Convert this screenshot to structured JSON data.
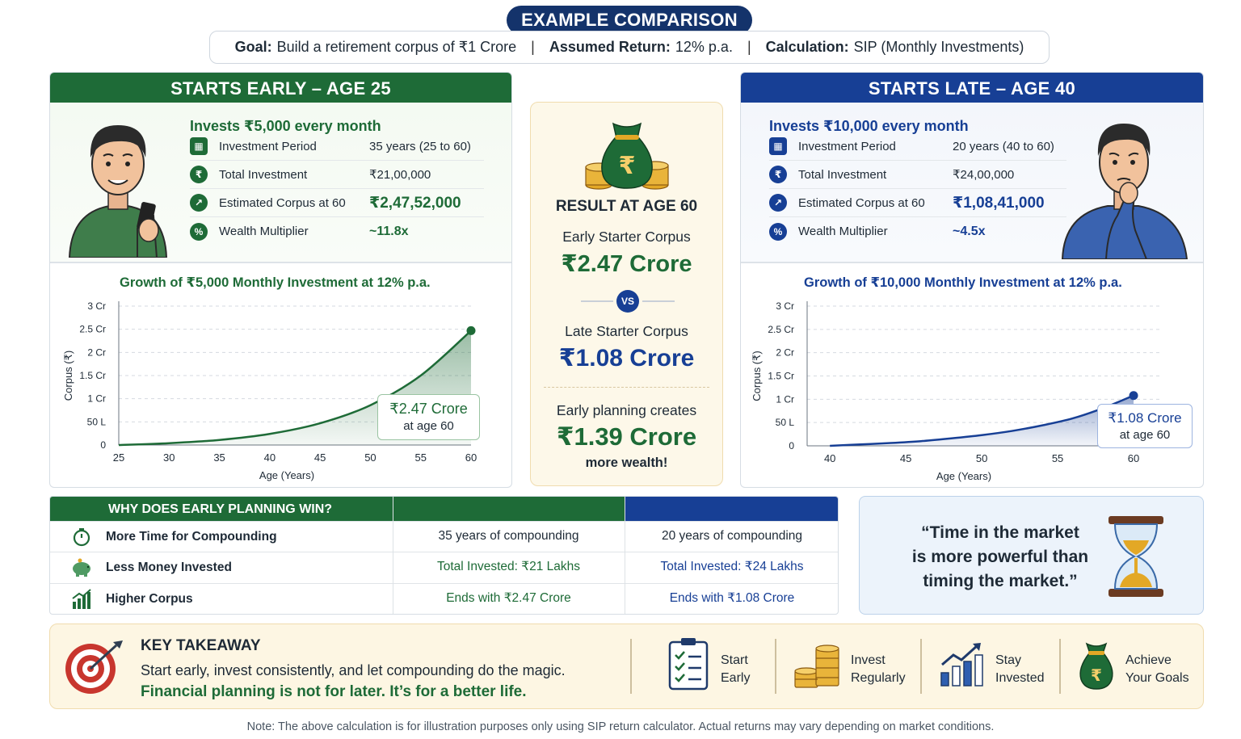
{
  "header": {
    "title": "EXAMPLE COMPARISON",
    "goal_label": "Goal:",
    "goal_value": "Build a retirement corpus of ₹1 Crore",
    "return_label": "Assumed Return:",
    "return_value": "12% p.a.",
    "calc_label": "Calculation:",
    "calc_value": "SIP (Monthly Investments)",
    "separator": "|"
  },
  "early": {
    "heading": "STARTS EARLY – AGE 25",
    "invest_title": "Invests ₹5,000 every month",
    "stats": [
      {
        "label": "Investment Period",
        "value": "35 years (25 to 60)"
      },
      {
        "label": "Total Investment",
        "value": "₹21,00,000"
      },
      {
        "label": "Estimated Corpus at 60",
        "value": "₹2,47,52,000"
      },
      {
        "label": "Wealth Multiplier",
        "value": "~11.8x"
      }
    ],
    "chart_title": "Growth of ₹5,000 Monthly Investment at 12% p.a.",
    "callout_value": "₹2.47 Crore",
    "callout_sub": "at age 60"
  },
  "late": {
    "heading": "STARTS LATE – AGE 40",
    "invest_title": "Invests ₹10,000 every month",
    "stats": [
      {
        "label": "Investment Period",
        "value": "20 years (40 to 60)"
      },
      {
        "label": "Total Investment",
        "value": "₹24,00,000"
      },
      {
        "label": "Estimated Corpus at 60",
        "value": "₹1,08,41,000"
      },
      {
        "label": "Wealth Multiplier",
        "value": "~4.5x"
      }
    ],
    "chart_title": "Growth of ₹10,000 Monthly Investment at 12% p.a.",
    "callout_value": "₹1.08 Crore",
    "callout_sub": "at age 60"
  },
  "result": {
    "title": "RESULT AT AGE 60",
    "early_label": "Early Starter Corpus",
    "early_value": "₹2.47 Crore",
    "vs": "VS",
    "late_label": "Late Starter Corpus",
    "late_value": "₹1.08 Crore",
    "planning_label": "Early planning creates",
    "planning_value": "₹1.39 Crore",
    "planning_sub": "more wealth!"
  },
  "why": {
    "heading": "WHY DOES EARLY PLANNING WIN?",
    "rows": [
      {
        "label": "More Time for Compounding",
        "early": "35 years of compounding",
        "late": "20 years of compounding"
      },
      {
        "label": "Less Money Invested",
        "early": "Total Invested:  ₹21 Lakhs",
        "late": "Total Invested:  ₹24 Lakhs"
      },
      {
        "label": "Higher Corpus",
        "early": "Ends with  ₹2.47 Crore",
        "late": "Ends with  ₹1.08 Crore"
      }
    ]
  },
  "quote": {
    "line1": "“Time in the market",
    "line2": "is more powerful than",
    "line3": "timing the market.”"
  },
  "takeaway": {
    "title": "KEY TAKEAWAY",
    "line1": "Start early, invest consistently, and let compounding do the magic.",
    "line2": "Financial planning is not for later. It’s for a better life.",
    "steps": [
      {
        "l1": "Start",
        "l2": "Early",
        "icon": "checklist-icon"
      },
      {
        "l1": "Invest",
        "l2": "Regularly",
        "icon": "coins-icon"
      },
      {
        "l1": "Stay",
        "l2": "Invested",
        "icon": "growth-chart-icon"
      },
      {
        "l1": "Achieve",
        "l2": "Your Goals",
        "icon": "money-bag-icon"
      }
    ]
  },
  "note": "Note: The above calculation is for illustration purposes only using SIP return calculator. Actual returns may vary depending on market conditions.",
  "colors": {
    "green": "#1e6b37",
    "blue": "#173f95",
    "navy": "#14336b",
    "gold": "#e3a826"
  },
  "chart_data": [
    {
      "type": "area",
      "title": "Growth of ₹5,000 Monthly Investment at 12% p.a.",
      "xlabel": "Age (Years)",
      "ylabel": "Corpus (₹)",
      "x_ticks": [
        25,
        30,
        35,
        40,
        45,
        50,
        55,
        60
      ],
      "y_ticks": [
        0,
        0.5,
        1,
        1.5,
        2,
        2.5,
        3
      ],
      "y_tick_labels": [
        "0",
        "50 L",
        "1 Cr",
        "1.5 Cr",
        "2 Cr",
        "2.5 Cr",
        "3 Cr"
      ],
      "xlim": [
        25,
        60
      ],
      "ylim": [
        0,
        3
      ],
      "grid": true,
      "series": [
        {
          "x": [
            25,
            30,
            35,
            40,
            45,
            50,
            55,
            60
          ],
          "y": [
            0,
            0.04,
            0.11,
            0.24,
            0.47,
            0.86,
            1.5,
            2.47
          ]
        }
      ],
      "annotation": {
        "x": 60,
        "y": 2.47,
        "text": "₹2.47 Crore",
        "sub": "at age 60"
      }
    },
    {
      "type": "area",
      "title": "Growth of ₹10,000 Monthly Investment at 12% p.a.",
      "xlabel": "Age (Years)",
      "ylabel": "Corpus (₹)",
      "x_ticks": [
        40,
        45,
        50,
        55,
        60
      ],
      "y_ticks": [
        0,
        0.5,
        1,
        1.5,
        2,
        2.5,
        3
      ],
      "y_tick_labels": [
        "0",
        "50 L",
        "1 Cr",
        "1.5 Cr",
        "2 Cr",
        "2.5 Cr",
        "3 Cr"
      ],
      "xlim": [
        38.5,
        65
      ],
      "ylim": [
        0,
        3
      ],
      "grid": true,
      "series": [
        {
          "x": [
            40,
            42,
            44,
            46,
            48,
            50,
            52,
            54,
            56,
            58,
            60
          ],
          "y": [
            0,
            0.03,
            0.06,
            0.1,
            0.16,
            0.23,
            0.32,
            0.44,
            0.59,
            0.81,
            1.08
          ]
        }
      ],
      "annotation": {
        "x": 60,
        "y": 1.08,
        "text": "₹1.08 Crore",
        "sub": "at age 60"
      }
    }
  ]
}
